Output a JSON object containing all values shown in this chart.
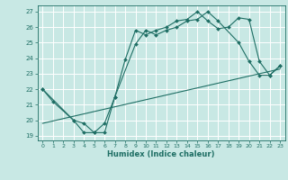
{
  "xlabel": "Humidex (Indice chaleur)",
  "xlim": [
    -0.5,
    23.5
  ],
  "ylim": [
    18.7,
    27.4
  ],
  "yticks": [
    19,
    20,
    21,
    22,
    23,
    24,
    25,
    26,
    27
  ],
  "xticks": [
    0,
    1,
    2,
    3,
    4,
    5,
    6,
    7,
    8,
    9,
    10,
    11,
    12,
    13,
    14,
    15,
    16,
    17,
    18,
    19,
    20,
    21,
    22,
    23
  ],
  "bg_color": "#c8e8e4",
  "line_color": "#1e6e64",
  "grid_color": "#ffffff",
  "line1_x": [
    0,
    1,
    3,
    4,
    5,
    6,
    7,
    8,
    9,
    10,
    11,
    12,
    13,
    14,
    15,
    16,
    17,
    18,
    19,
    20,
    21,
    22,
    23
  ],
  "line1_y": [
    22.0,
    21.2,
    20.0,
    19.2,
    19.2,
    19.2,
    21.5,
    23.9,
    25.8,
    25.5,
    25.8,
    26.0,
    26.4,
    26.5,
    27.0,
    26.4,
    25.9,
    26.0,
    26.6,
    26.5,
    23.8,
    22.9,
    23.5
  ],
  "line2_x": [
    0,
    3,
    4,
    5,
    6,
    7,
    9,
    10,
    11,
    12,
    13,
    14,
    15,
    16,
    17,
    19,
    20,
    21,
    22,
    23
  ],
  "line2_y": [
    22.0,
    20.0,
    19.8,
    19.2,
    19.8,
    21.5,
    24.9,
    25.8,
    25.5,
    25.8,
    26.0,
    26.4,
    26.5,
    27.0,
    26.4,
    25.0,
    23.8,
    22.9,
    22.9,
    23.5
  ],
  "line3_x": [
    0,
    23
  ],
  "line3_y": [
    19.8,
    23.3
  ]
}
